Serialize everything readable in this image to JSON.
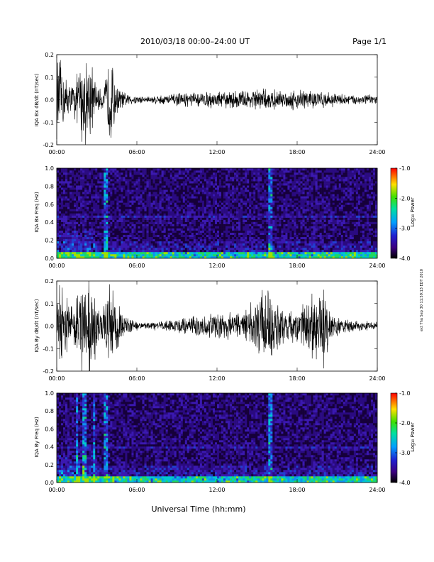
{
  "header": {
    "title": "2010/03/18  00:00–24:00 UT",
    "page": "Page 1/1"
  },
  "footer": {
    "xlabel": "Universal Time (hh:mm)",
    "stamp": "ext Thu Sep 30 11:59:13 EDT 2010"
  },
  "chart_data": [
    {
      "type": "line",
      "ylabel": "IQA Bx dB/dt (nT/sec)",
      "xlim": [
        "00:00",
        "24:00"
      ],
      "ylim": [
        -0.2,
        0.2
      ],
      "xticks": [
        "00:00",
        "06:00",
        "12:00",
        "18:00",
        "24:00"
      ],
      "yticks": [
        "-0.2",
        "-0.1",
        "0.0",
        "0.1",
        "0.2"
      ],
      "envelope_hours": [
        0,
        0.5,
        1,
        1.5,
        2,
        2.5,
        3,
        3.5,
        4,
        4.5,
        5,
        5.5,
        6,
        6.5,
        7,
        7.5,
        8,
        8.5,
        9,
        9.5,
        10,
        10.5,
        11,
        11.5,
        12,
        12.5,
        13,
        13.5,
        14,
        14.5,
        15,
        15.5,
        16,
        16.5,
        17,
        17.5,
        18,
        18.5,
        19,
        19.5,
        20,
        20.5,
        21,
        21.5,
        22,
        22.5,
        23,
        23.5,
        24
      ],
      "envelope_amplitude": [
        0.2,
        0.12,
        0.06,
        0.1,
        0.2,
        0.18,
        0.05,
        0.04,
        0.2,
        0.06,
        0.03,
        0.02,
        0.02,
        0.015,
        0.015,
        0.02,
        0.02,
        0.025,
        0.025,
        0.03,
        0.03,
        0.03,
        0.03,
        0.035,
        0.035,
        0.035,
        0.035,
        0.04,
        0.04,
        0.04,
        0.045,
        0.045,
        0.04,
        0.04,
        0.035,
        0.04,
        0.045,
        0.05,
        0.04,
        0.035,
        0.035,
        0.03,
        0.025,
        0.025,
        0.02,
        0.02,
        0.025,
        0.02,
        0.02
      ]
    },
    {
      "type": "heatmap",
      "ylabel": "IQA Bx Freq (Hz)",
      "xlim": [
        "00:00",
        "24:00"
      ],
      "ylim": [
        0.0,
        1.0
      ],
      "xticks": [
        "00:00",
        "06:00",
        "12:00",
        "18:00",
        "24:00"
      ],
      "yticks": [
        "0.0",
        "0.2",
        "0.4",
        "0.6",
        "0.8",
        "1.0"
      ],
      "colorbar": {
        "label": "Log₁₀ Power",
        "range": [
          -4.0,
          -1.0
        ],
        "ticks": [
          "-1.0",
          "-2.0",
          "-3.0",
          "-4.0"
        ]
      },
      "features": {
        "vertical_lines_hours": [
          3.7,
          16.0
        ],
        "low_freq_activity": true,
        "band_freq_hz": 0.47
      }
    },
    {
      "type": "line",
      "ylabel": "IQA By dB/dt (nT/sec)",
      "xlim": [
        "00:00",
        "24:00"
      ],
      "ylim": [
        -0.2,
        0.2
      ],
      "xticks": [
        "00:00",
        "06:00",
        "12:00",
        "18:00",
        "24:00"
      ],
      "yticks": [
        "-0.2",
        "-0.1",
        "0.0",
        "0.1",
        "0.2"
      ],
      "envelope_hours": [
        0,
        0.5,
        1,
        1.5,
        2,
        2.5,
        3,
        3.5,
        4,
        4.5,
        5,
        5.5,
        6,
        6.5,
        7,
        7.5,
        8,
        8.5,
        9,
        9.5,
        10,
        10.5,
        11,
        11.5,
        12,
        12.5,
        13,
        13.5,
        14,
        14.5,
        15,
        15.5,
        16,
        16.5,
        17,
        17.5,
        18,
        18.5,
        19,
        19.5,
        20,
        20.5,
        21,
        21.5,
        22,
        22.5,
        23,
        23.5,
        24
      ],
      "envelope_amplitude": [
        0.2,
        0.15,
        0.08,
        0.15,
        0.2,
        0.2,
        0.1,
        0.08,
        0.2,
        0.1,
        0.05,
        0.03,
        0.02,
        0.015,
        0.015,
        0.02,
        0.02,
        0.025,
        0.03,
        0.035,
        0.04,
        0.04,
        0.045,
        0.05,
        0.05,
        0.05,
        0.055,
        0.06,
        0.07,
        0.1,
        0.12,
        0.15,
        0.2,
        0.12,
        0.08,
        0.07,
        0.07,
        0.1,
        0.12,
        0.15,
        0.2,
        0.06,
        0.04,
        0.03,
        0.025,
        0.02,
        0.02,
        0.02,
        0.02
      ]
    },
    {
      "type": "heatmap",
      "ylabel": "IQA By Freq (Hz)",
      "xlim": [
        "00:00",
        "24:00"
      ],
      "ylim": [
        0.0,
        1.0
      ],
      "xticks": [
        "00:00",
        "06:00",
        "12:00",
        "18:00",
        "24:00"
      ],
      "yticks": [
        "0.0",
        "0.2",
        "0.4",
        "0.6",
        "0.8",
        "1.0"
      ],
      "colorbar": {
        "label": "Log₁₀ Power",
        "range": [
          -4.0,
          -1.0
        ],
        "ticks": [
          "-1.0",
          "-2.0",
          "-3.0",
          "-4.0"
        ]
      },
      "features": {
        "vertical_lines_hours": [
          1.5,
          2.1,
          2.8,
          3.7,
          16.0
        ],
        "low_freq_activity": true,
        "band_freq_hz": 0.4
      }
    }
  ]
}
